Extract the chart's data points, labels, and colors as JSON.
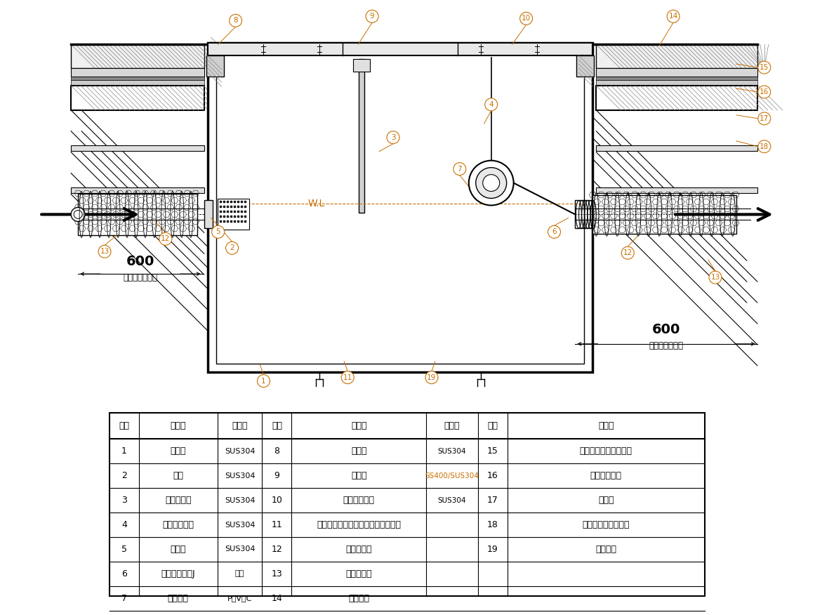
{
  "bg_color": "#ffffff",
  "lc": "#000000",
  "orange": "#c87000",
  "table_rows": [
    [
      "1",
      "本　体",
      "SUS304",
      "8",
      "受　枠",
      "SUS304",
      "15",
      "増し打ちコンクリート"
    ],
    [
      "2",
      "受笼",
      "SUS304",
      "9",
      "ふ　た",
      "SS400/SUS304",
      "16",
      "保護モルタル"
    ],
    [
      "3",
      "スライド板",
      "SUS304",
      "10",
      "固定用ピース",
      "SUS304",
      "17",
      "防水層"
    ],
    [
      "4",
      "防水止フック",
      "SUS304",
      "11",
      "耗火被覆材（けい酸カルシウム板）",
      "",
      "18",
      "スラブコンクリート"
    ],
    [
      "5",
      "流入管",
      "SUS304",
      "12",
      "耗火被覆材",
      "",
      "19",
      "吹り金具"
    ],
    [
      "6",
      "フレキシブルJ",
      "ゴム",
      "13",
      "固定バンド",
      "",
      "",
      ""
    ],
    [
      "7",
      "トラップ",
      "P　V　C",
      "14",
      "床仕上げ",
      "",
      "",
      ""
    ]
  ],
  "table_headers": [
    "部番",
    "品　名",
    "材　質",
    "部番",
    "品　名",
    "材　質",
    "部番",
    "品　名"
  ]
}
